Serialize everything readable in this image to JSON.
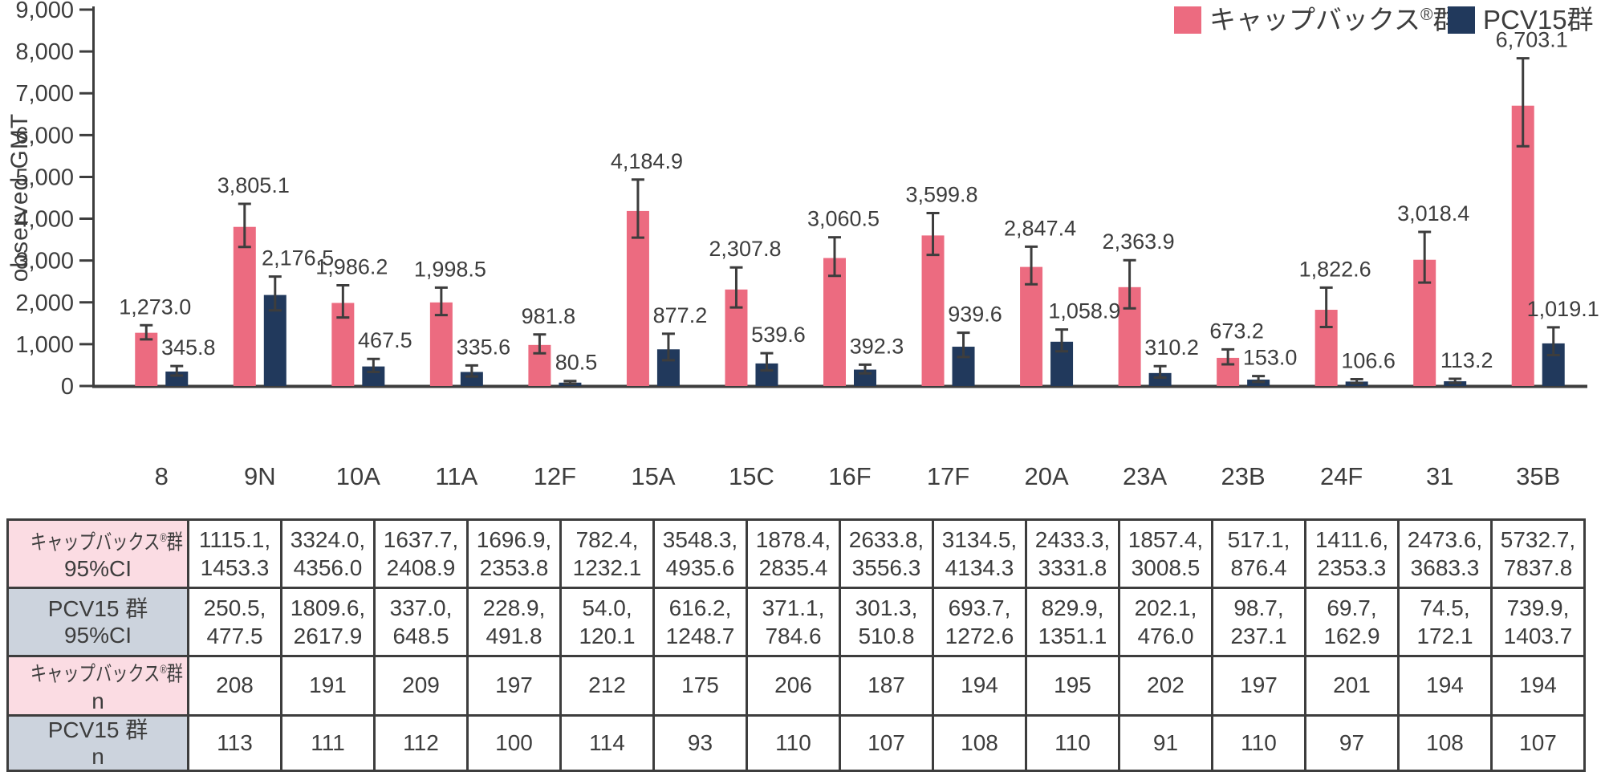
{
  "chart_data": {
    "type": "bar",
    "title": "",
    "ylabel": "observed GMT",
    "ylim": [
      0,
      9000
    ],
    "ytick_step": 1000,
    "ytick_labels": [
      "0",
      "1,000",
      "2,000",
      "3,000",
      "4,000",
      "5,000",
      "6,000",
      "7,000",
      "8,000",
      "9,000"
    ],
    "grid": "off",
    "legend_position": "top-right",
    "axis_color": "#3d3d3d",
    "categories": [
      "8",
      "9N",
      "10A",
      "11A",
      "12F",
      "15A",
      "15C",
      "16F",
      "17F",
      "20A",
      "23A",
      "23B",
      "24F",
      "31",
      "35B"
    ],
    "series": [
      {
        "key": "capvaxive",
        "name": "キャップバックス®群",
        "color": "#EC6B80",
        "values": [
          1273.0,
          3805.1,
          1986.2,
          1998.5,
          981.8,
          4184.9,
          2307.8,
          3060.5,
          3599.8,
          2847.4,
          2363.9,
          673.2,
          1822.6,
          3018.4,
          6703.1
        ],
        "value_labels": [
          "1,273.0",
          "3,805.1",
          "1,986.2",
          "1,998.5",
          "981.8",
          "4,184.9",
          "2,307.8",
          "3,060.5",
          "3,599.8",
          "2,847.4",
          "2,363.9",
          "673.2",
          "1,822.6",
          "3,018.4",
          "6,703.1"
        ],
        "ci_low": [
          "1115.1",
          "3324.0",
          "1637.7",
          "1696.9",
          "782.4",
          "3548.3",
          "1878.4",
          "2633.8",
          "3134.5",
          "2433.3",
          "1857.4",
          "517.1",
          "1411.6",
          "2473.6",
          "5732.7"
        ],
        "ci_high": [
          "1453.3",
          "4356.0",
          "2408.9",
          "2353.8",
          "1232.1",
          "4935.6",
          "2835.4",
          "3556.3",
          "4134.3",
          "3331.8",
          "3008.5",
          "876.4",
          "2353.3",
          "3683.3",
          "7837.8"
        ],
        "n": [
          208,
          191,
          209,
          197,
          212,
          175,
          206,
          187,
          194,
          195,
          202,
          197,
          201,
          194,
          194
        ]
      },
      {
        "key": "pcv15",
        "name": "PCV15群",
        "color": "#21395C",
        "values": [
          345.8,
          2176.5,
          467.5,
          335.6,
          80.5,
          877.2,
          539.6,
          392.3,
          939.6,
          1058.9,
          310.2,
          153.0,
          106.6,
          113.2,
          1019.1
        ],
        "value_labels": [
          "345.8",
          "2,176.5",
          "467.5",
          "335.6",
          "80.5",
          "877.2",
          "539.6",
          "392.3",
          "939.6",
          "1,058.9",
          "310.2",
          "153.0",
          "106.6",
          "113.2",
          "1,019.1"
        ],
        "ci_low": [
          "250.5",
          "1809.6",
          "337.0",
          "228.9",
          "54.0",
          "616.2",
          "371.1",
          "301.3",
          "693.7",
          "829.9",
          "202.1",
          "98.7",
          "69.7",
          "74.5",
          "739.9"
        ],
        "ci_high": [
          "477.5",
          "2617.9",
          "648.5",
          "491.8",
          "120.1",
          "1248.7",
          "784.6",
          "510.8",
          "1272.6",
          "1351.1",
          "476.0",
          "237.1",
          "162.9",
          "172.1",
          "1403.7"
        ],
        "n": [
          113,
          111,
          112,
          100,
          114,
          93,
          110,
          107,
          108,
          110,
          91,
          110,
          97,
          108,
          107
        ]
      }
    ]
  },
  "table": {
    "rows": [
      {
        "header_line1": "キャップバックス®群",
        "header_line2": "95%CI",
        "bg": "#FBDCE3",
        "condensed": true,
        "type": "ci",
        "series": 0
      },
      {
        "header_line1": "PCV15 群",
        "header_line2": "95%CI",
        "bg": "#CCD3DD",
        "condensed": false,
        "type": "ci",
        "series": 1
      },
      {
        "header_line1": "キャップバックス®群",
        "header_line2": "n",
        "bg": "#FBDCE3",
        "condensed": true,
        "type": "n",
        "series": 0
      },
      {
        "header_line1": "PCV15 群",
        "header_line2": "n",
        "bg": "#CCD3DD",
        "condensed": false,
        "type": "n",
        "series": 1
      }
    ]
  }
}
